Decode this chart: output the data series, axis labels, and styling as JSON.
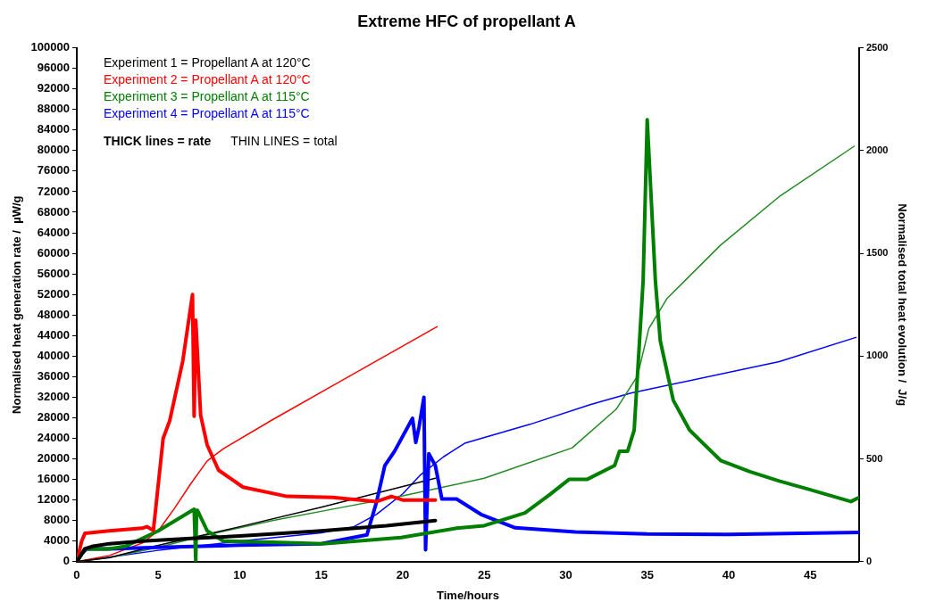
{
  "chart_data": {
    "type": "line",
    "title": "Extreme HFC of propellant A",
    "xlabel": "Time/hours",
    "ylabel": "Normalised heat generation rate /  µW/g",
    "y2label": "Normalised total heat evolution /  J/g",
    "xlim": [
      0,
      48
    ],
    "xticks": [
      0,
      5,
      10,
      15,
      20,
      25,
      30,
      35,
      40,
      45
    ],
    "ylim": [
      0,
      100000
    ],
    "yticks": [
      0,
      4000,
      8000,
      12000,
      16000,
      20000,
      24000,
      28000,
      32000,
      36000,
      40000,
      44000,
      48000,
      52000,
      56000,
      60000,
      64000,
      68000,
      72000,
      76000,
      80000,
      84000,
      88000,
      92000,
      96000,
      100000
    ],
    "y2lim": [
      0,
      2500
    ],
    "y2ticks": [
      0,
      500,
      1000,
      1500,
      2000,
      2500
    ],
    "grid": false,
    "legend": "top left",
    "marker": "none",
    "line_style": "solid",
    "annotations": [
      "THICK lines = rate",
      "THIN LINES = total"
    ],
    "series": [
      {
        "name": "Experiment 1 = Propellant A at 120°C",
        "color": "#000000",
        "x": [
          0,
          0.5,
          1,
          2,
          4,
          7,
          10,
          15,
          19,
          22
        ],
        "values": [
          0,
          2500,
          3000,
          3500,
          4000,
          4500,
          5000,
          6000,
          7000,
          8000
        ]
      },
      {
        "name": "Experiment 2 = Propellant A at 120°C",
        "color": "#ff0000",
        "x": [
          0,
          0.3,
          0.5,
          2,
          4,
          4.3,
          4.7,
          5.3,
          5.7,
          6.5,
          7.1,
          7.2,
          7.3,
          7.6,
          8,
          8.7,
          10.2,
          12.9,
          15.7,
          18.4,
          19.3,
          20,
          22
        ],
        "values": [
          0,
          4000,
          5500,
          6000,
          6500,
          6800,
          6100,
          24000,
          27400,
          39000,
          52000,
          28300,
          47000,
          28500,
          22700,
          17800,
          14500,
          12700,
          12500,
          11700,
          12700,
          12000,
          12000
        ]
      },
      {
        "name": "Experiment 3 = Propellant A at 115°C",
        "color": "#008000",
        "x": [
          0,
          0.5,
          2,
          3,
          5,
          7.2,
          7.3,
          7.35,
          7.4,
          8,
          9,
          12,
          15.1,
          19.9,
          23.3,
          25,
          27.5,
          29,
          30.2,
          31.3,
          33,
          33.3,
          33.8,
          34.2,
          34.75,
          35,
          35.5,
          35.8,
          36.6,
          37.6,
          39.5,
          41.3,
          43.1,
          45,
          47.5,
          48
        ],
        "values": [
          0,
          2500,
          2500,
          3000,
          6000,
          10200,
          0,
          10000,
          10000,
          6000,
          4000,
          3800,
          3500,
          4700,
          6500,
          7000,
          9500,
          13000,
          16000,
          16000,
          18700,
          21500,
          21500,
          25600,
          54700,
          86000,
          54700,
          43000,
          31400,
          25600,
          19700,
          17500,
          15700,
          14000,
          11700,
          12500
        ]
      },
      {
        "name": "Experiment 4 = Propellant A at 115°C",
        "color": "#0000ff",
        "x": [
          0,
          0.3,
          0.6,
          2,
          5,
          10,
          15,
          17.8,
          18.4,
          18.9,
          19.5,
          20.6,
          20.8,
          21,
          21.3,
          21.4,
          21.6,
          22,
          22.4,
          23.3,
          24.8,
          26.9,
          30.6,
          35,
          40,
          48
        ],
        "values": [
          0,
          1500,
          2500,
          2500,
          2800,
          3200,
          3500,
          5200,
          11700,
          18700,
          21500,
          27900,
          23200,
          26200,
          32000,
          2300,
          21000,
          18700,
          12200,
          12200,
          9200,
          6600,
          5800,
          5400,
          5300,
          5700
        ]
      },
      {
        "color": "#000000",
        "axis": "y2",
        "x": [
          0,
          2,
          4.7,
          10,
          15,
          22
        ],
        "values": [
          0,
          20,
          74,
          170,
          265,
          406
        ]
      },
      {
        "color": "#ff0000",
        "axis": "y2",
        "x": [
          0,
          2,
          4,
          5,
          6,
          7,
          8,
          9,
          12,
          16,
          22.1
        ],
        "values": [
          0,
          30,
          90,
          150,
          260,
          380,
          490,
          550,
          690,
          870,
          1143
        ]
      },
      {
        "color": "#228b22",
        "axis": "y2",
        "x": [
          0,
          2,
          5,
          8,
          12,
          16,
          20,
          25,
          30.4,
          33.1,
          34.4,
          35.1,
          36.2,
          39.5,
          43.1,
          47.7
        ],
        "values": [
          0,
          20,
          70,
          130,
          200,
          260,
          320,
          406,
          554,
          742,
          903,
          1134,
          1279,
          1540,
          1776,
          2021
        ]
      },
      {
        "color": "#0000ff",
        "axis": "y2",
        "x": [
          0,
          5,
          10,
          15,
          17,
          18.4,
          20,
          21.1,
          22.5,
          23.8,
          27.8,
          31.5,
          34,
          43.1,
          47.8
        ],
        "values": [
          0,
          55,
          100,
          140,
          170,
          231,
          330,
          423,
          510,
          576,
          668,
          764,
          820,
          973,
          1091
        ]
      }
    ]
  }
}
